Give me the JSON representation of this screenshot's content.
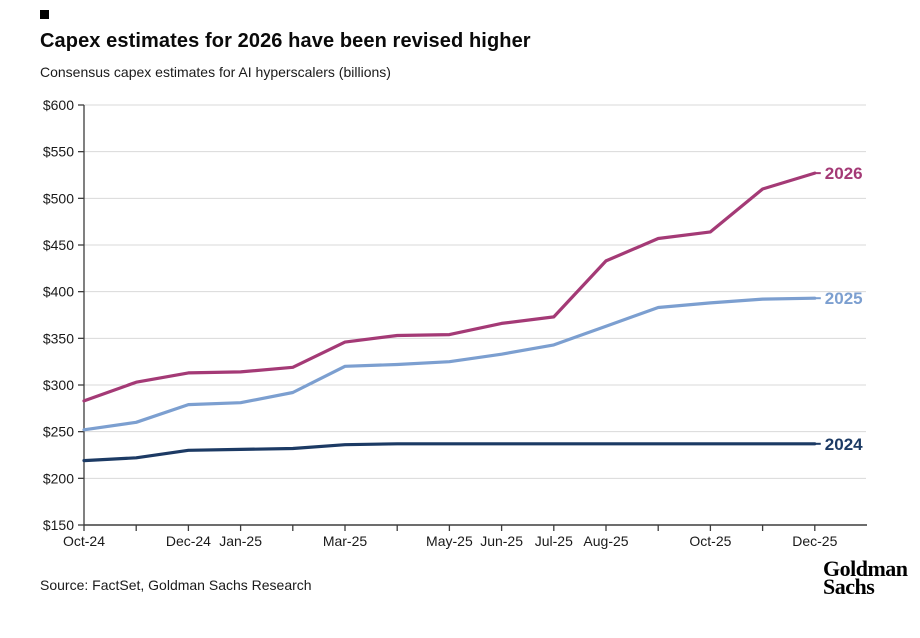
{
  "header": {
    "title": "Capex estimates for 2026 have been revised higher",
    "subtitle": "Consensus capex estimates for AI hyperscalers (billions)"
  },
  "footer": {
    "source": "Source: FactSet, Goldman Sachs Research",
    "logo": {
      "line1": "Goldman",
      "line2": "Sachs"
    }
  },
  "chart_data": {
    "type": "line",
    "title": "Capex estimates for 2026 have been revised higher",
    "subtitle": "Consensus capex estimates for AI hyperscalers (billions)",
    "unit": "USD billions",
    "x": [
      "Oct-24",
      "Nov-24",
      "Dec-24",
      "Jan-25",
      "Feb-25",
      "Mar-25",
      "Apr-25",
      "May-25",
      "Jun-25",
      "Jul-25",
      "Aug-25",
      "Sep-25",
      "Oct-25",
      "Nov-25",
      "Dec-25"
    ],
    "x_labels_shown": [
      "Oct-24",
      "Dec-24",
      "Jan-25",
      "Mar-25",
      "May-25",
      "Jun-25",
      "Jul-25",
      "Aug-25",
      "Oct-25",
      "Dec-25"
    ],
    "x_shown_indices": [
      0,
      2,
      3,
      5,
      7,
      8,
      9,
      10,
      12,
      14
    ],
    "ylim": [
      150,
      600
    ],
    "y_tick_step": 50,
    "y_tick_prefix": "$",
    "grid": "horizontal",
    "legend_position": "line-end-labels",
    "series": [
      {
        "name": "2026",
        "color": "#A43A76",
        "values": [
          283,
          303,
          313,
          314,
          319,
          346,
          353,
          354,
          366,
          373,
          433,
          457,
          464,
          510,
          527
        ]
      },
      {
        "name": "2025",
        "color": "#7C9FD0",
        "values": [
          252,
          260,
          279,
          281,
          292,
          320,
          322,
          325,
          333,
          343,
          363,
          383,
          388,
          392,
          393
        ]
      },
      {
        "name": "2024",
        "color": "#1C3A64",
        "values": [
          219,
          222,
          230,
          231,
          232,
          236,
          237,
          237,
          237,
          237,
          237,
          237,
          237,
          237,
          237
        ]
      }
    ],
    "colors": {
      "grid": "#d9d9d9",
      "axis": "#3d3d3d",
      "tick_text": "#1a1a1a"
    }
  }
}
